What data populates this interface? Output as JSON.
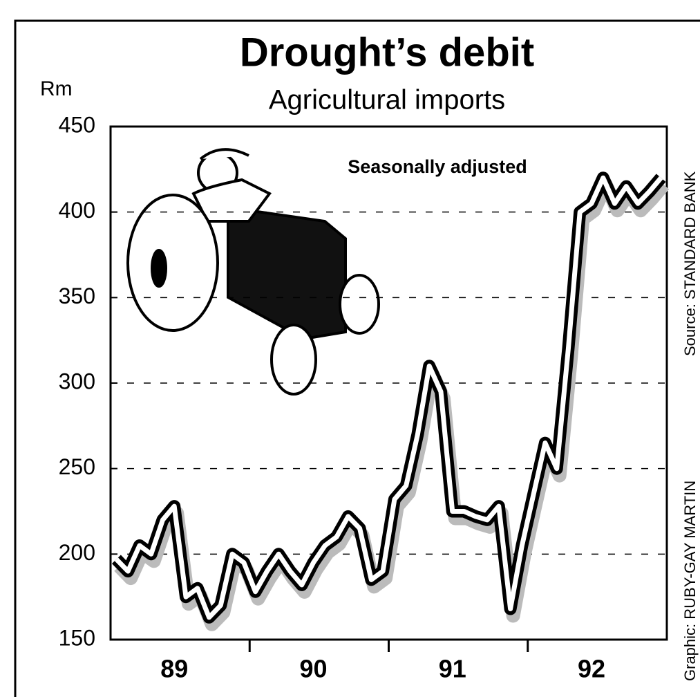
{
  "chart_data": {
    "type": "line",
    "title": "Drought’s debit",
    "subtitle": "Agricultural imports",
    "y_unit": "Rm",
    "annotation": "Seasonally adjusted",
    "credit": "Graphic: RUBY-GAY MARTIN",
    "source": "Source: STANDARD BANK",
    "categories": [
      null,
      null,
      null,
      null,
      null,
      "89",
      null,
      null,
      null,
      null,
      null,
      null,
      null,
      null,
      null,
      null,
      null,
      "90",
      null,
      null,
      null,
      null,
      null,
      null,
      null,
      null,
      null,
      null,
      null,
      "91",
      null,
      null,
      null,
      null,
      null,
      null,
      null,
      null,
      null,
      null,
      null,
      "92",
      null,
      null,
      null,
      null,
      null,
      null
    ],
    "values": [
      197,
      190,
      205,
      200,
      220,
      228,
      175,
      180,
      163,
      170,
      200,
      195,
      178,
      190,
      200,
      190,
      182,
      195,
      205,
      210,
      222,
      215,
      185,
      190,
      232,
      240,
      270,
      310,
      295,
      225,
      225,
      222,
      220,
      228,
      168,
      205,
      235,
      265,
      250,
      320,
      400,
      405,
      420,
      405,
      415,
      405,
      412,
      420
    ],
    "color": "#000000",
    "ylim": [
      150,
      450
    ],
    "yticks": [
      150,
      200,
      250,
      300,
      350,
      400,
      450
    ],
    "grid": true
  }
}
